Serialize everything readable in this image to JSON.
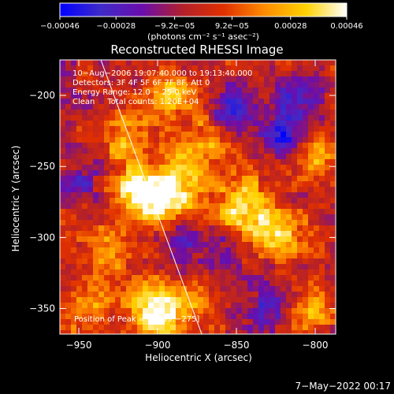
{
  "chart_data": {
    "type": "heatmap",
    "title": "Reconstructed RHESSI Image",
    "xlabel": "Heliocentric X (arcsec)",
    "ylabel": "Heliocentric Y (arcsec)",
    "xlim": [
      -962,
      -787
    ],
    "ylim": [
      -368,
      -175
    ],
    "x_ticks": [
      -950,
      -900,
      -850,
      -800
    ],
    "x_tick_labels": [
      "−950",
      "−900",
      "−850",
      "−800"
    ],
    "y_ticks": [
      -200,
      -250,
      -300,
      -350
    ],
    "y_tick_labels": [
      "−200",
      "−250",
      "−300",
      "−350"
    ],
    "colorbar": {
      "min": -0.00046,
      "max": 0.00046,
      "tick_values": [
        -0.00046,
        -0.00028,
        -9.2e-05,
        9.2e-05,
        0.00028,
        0.00046
      ],
      "tick_labels": [
        "−0.00046",
        "−0.00028",
        "−9.2e−05",
        "9.2e−05",
        "0.00028",
        "0.00046"
      ],
      "units_label": "(photons cm⁻² s⁻¹ asec⁻²)",
      "colors": [
        "#0000ff",
        "#3f2bc8",
        "#6a0dad",
        "#b3202a",
        "#e03000",
        "#ff8c00",
        "#ffd200",
        "#ffffff"
      ]
    },
    "annotations": [
      "10−Aug−2006 19:07:40.000 to 19:13:40.000",
      "Detectors: 3F 4F 5F 6F 7F 8F, Att 0",
      "Energy Range: 12.0 − 25.0 keV",
      "Clean     Total counts: 1.20E+04"
    ],
    "peak_label": "Position of Peak = [−899,−275]",
    "peak": [
      -899,
      -275
    ],
    "limb_line": [
      [
        -936,
        -175
      ],
      [
        -872,
        -368
      ]
    ],
    "field_features": [
      {
        "x": -899,
        "y": -275,
        "level": 1.0
      },
      {
        "x": -915,
        "y": -265,
        "level": 0.8
      },
      {
        "x": -885,
        "y": -255,
        "level": 0.7
      },
      {
        "x": -920,
        "y": -230,
        "level": 0.75
      },
      {
        "x": -890,
        "y": -200,
        "level": 0.7
      },
      {
        "x": -870,
        "y": -230,
        "level": 0.55
      },
      {
        "x": -860,
        "y": -290,
        "level": 0.7
      },
      {
        "x": -845,
        "y": -270,
        "level": 0.7
      },
      {
        "x": -835,
        "y": -290,
        "level": 0.6
      },
      {
        "x": -800,
        "y": -240,
        "level": 0.65
      },
      {
        "x": -820,
        "y": -300,
        "level": 0.55
      },
      {
        "x": -905,
        "y": -340,
        "level": 0.7
      },
      {
        "x": -880,
        "y": -345,
        "level": 0.65
      },
      {
        "x": -900,
        "y": -360,
        "level": 0.75
      },
      {
        "x": -945,
        "y": -350,
        "level": 0.55
      },
      {
        "x": -935,
        "y": -310,
        "level": 0.5
      },
      {
        "x": -805,
        "y": -350,
        "level": 0.6
      },
      {
        "x": -850,
        "y": -210,
        "level": -0.7
      },
      {
        "x": -860,
        "y": -300,
        "level": -0.6
      },
      {
        "x": -820,
        "y": -230,
        "level": -0.7
      },
      {
        "x": -885,
        "y": -300,
        "level": -0.6
      },
      {
        "x": -830,
        "y": -350,
        "level": -0.55
      },
      {
        "x": -950,
        "y": -260,
        "level": -0.4
      },
      {
        "x": -810,
        "y": -200,
        "level": -0.6
      }
    ]
  },
  "footer": {
    "timestamp": "7−May−2022 00:17"
  }
}
